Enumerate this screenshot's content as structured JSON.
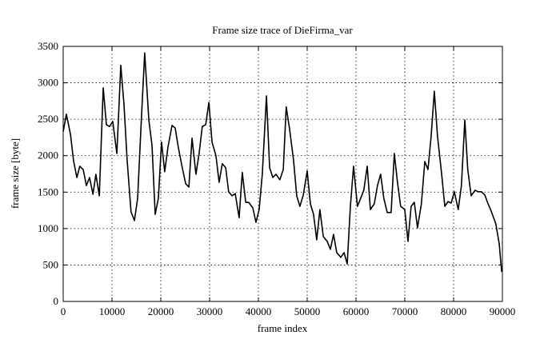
{
  "chart_data": {
    "type": "line",
    "title": "Frame size trace of DieFirma_var",
    "xlabel": "frame index",
    "ylabel": "frame size [byte]",
    "xlim": [
      0,
      90000
    ],
    "ylim": [
      0,
      3500
    ],
    "xticks": [
      0,
      10000,
      20000,
      30000,
      40000,
      50000,
      60000,
      70000,
      80000,
      90000
    ],
    "yticks": [
      0,
      500,
      1000,
      1500,
      2000,
      2500,
      3000,
      3500
    ],
    "grid": true,
    "series": [
      {
        "color": "#000000",
        "x": [
          0,
          650,
          1500,
          2100,
          2800,
          3400,
          4100,
          4750,
          5400,
          6100,
          6700,
          7400,
          8200,
          8850,
          9500,
          10150,
          11000,
          11800,
          12450,
          13100,
          13900,
          14600,
          15250,
          16050,
          16700,
          17550,
          18200,
          18850,
          19500,
          20150,
          20800,
          21450,
          22300,
          22950,
          23600,
          24400,
          25100,
          25750,
          26400,
          27200,
          27850,
          28500,
          29200,
          29850,
          30500,
          31300,
          31950,
          32600,
          33300,
          33900,
          34600,
          35250,
          36050,
          36700,
          37400,
          38000,
          38850,
          39500,
          40150,
          40800,
          41650,
          42300,
          42950,
          43600,
          44400,
          45100,
          45700,
          46400,
          47200,
          47850,
          48500,
          49200,
          50000,
          50650,
          51300,
          51950,
          52600,
          53300,
          54100,
          54750,
          55400,
          56050,
          56900,
          57550,
          58200,
          58850,
          59500,
          60300,
          60950,
          61600,
          62300,
          62950,
          63750,
          64400,
          65050,
          65700,
          66400,
          67200,
          67850,
          68500,
          69150,
          70000,
          70650,
          71300,
          71950,
          72600,
          73400,
          74100,
          74750,
          75400,
          76050,
          76700,
          77500,
          78200,
          78850,
          79500,
          80150,
          80950,
          81600,
          82300,
          82900,
          83600,
          84400,
          85050,
          85700,
          86400,
          87000,
          87700,
          88650,
          89350,
          89850
        ],
        "values": [
          2330,
          2570,
          2290,
          1940,
          1700,
          1855,
          1810,
          1590,
          1700,
          1470,
          1745,
          1450,
          2930,
          2425,
          2400,
          2470,
          2030,
          3240,
          2710,
          1940,
          1230,
          1110,
          1415,
          2545,
          3410,
          2490,
          2140,
          1195,
          1415,
          2185,
          1780,
          2110,
          2415,
          2380,
          2110,
          1835,
          1615,
          1570,
          2240,
          1745,
          2030,
          2400,
          2425,
          2730,
          2185,
          2000,
          1635,
          1890,
          1835,
          1505,
          1450,
          1480,
          1150,
          1770,
          1360,
          1360,
          1285,
          1085,
          1260,
          1745,
          2820,
          1835,
          1700,
          1745,
          1670,
          1810,
          2670,
          2360,
          1940,
          1450,
          1305,
          1460,
          1790,
          1340,
          1195,
          845,
          1260,
          890,
          825,
          715,
          920,
          670,
          605,
          670,
          515,
          1305,
          1855,
          1305,
          1415,
          1525,
          1855,
          1260,
          1340,
          1590,
          1745,
          1415,
          1220,
          1220,
          2030,
          1635,
          1305,
          1260,
          825,
          1305,
          1360,
          1010,
          1340,
          1920,
          1810,
          2270,
          2885,
          2270,
          1780,
          1305,
          1370,
          1350,
          1505,
          1260,
          1590,
          2490,
          1810,
          1450,
          1525,
          1505,
          1505,
          1460,
          1350,
          1240,
          1065,
          790,
          405
        ]
      }
    ]
  }
}
